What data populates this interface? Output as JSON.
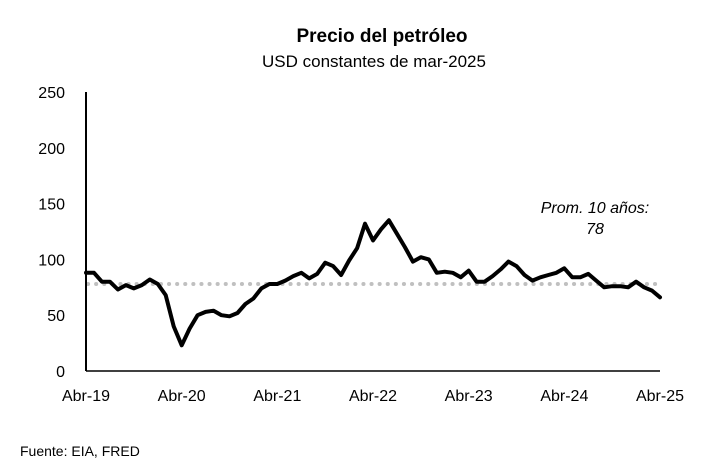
{
  "chart_data": {
    "type": "line",
    "title": "Precio del petróleo",
    "subtitle": "USD constantes de mar-2025",
    "xlabel": "",
    "ylabel": "",
    "ylim": [
      0,
      250
    ],
    "yticks": [
      0,
      50,
      100,
      150,
      200,
      250
    ],
    "xtick_labels": [
      "Abr-19",
      "Abr-20",
      "Abr-21",
      "Abr-22",
      "Abr-23",
      "Abr-24",
      "Abr-25"
    ],
    "grid": false,
    "series": [
      {
        "name": "",
        "color": "#000000",
        "points": [
          [
            "2019-04",
            88
          ],
          [
            "2019-05",
            88
          ],
          [
            "2019-06",
            80
          ],
          [
            "2019-07",
            80
          ],
          [
            "2019-08",
            73
          ],
          [
            "2019-09",
            77
          ],
          [
            "2019-10",
            74
          ],
          [
            "2019-11",
            77
          ],
          [
            "2019-12",
            82
          ],
          [
            "2020-01",
            78
          ],
          [
            "2020-02",
            68
          ],
          [
            "2020-03",
            40
          ],
          [
            "2020-04",
            23
          ],
          [
            "2020-05",
            38
          ],
          [
            "2020-06",
            50
          ],
          [
            "2020-07",
            53
          ],
          [
            "2020-08",
            54
          ],
          [
            "2020-09",
            50
          ],
          [
            "2020-10",
            49
          ],
          [
            "2020-11",
            52
          ],
          [
            "2020-12",
            60
          ],
          [
            "2021-01",
            65
          ],
          [
            "2021-02",
            74
          ],
          [
            "2021-03",
            78
          ],
          [
            "2021-04",
            78
          ],
          [
            "2021-05",
            81
          ],
          [
            "2021-06",
            85
          ],
          [
            "2021-07",
            88
          ],
          [
            "2021-08",
            83
          ],
          [
            "2021-09",
            87
          ],
          [
            "2021-10",
            97
          ],
          [
            "2021-11",
            94
          ],
          [
            "2021-12",
            86
          ],
          [
            "2022-01",
            99
          ],
          [
            "2022-02",
            110
          ],
          [
            "2022-03",
            132
          ],
          [
            "2022-04",
            117
          ],
          [
            "2022-05",
            127
          ],
          [
            "2022-06",
            135
          ],
          [
            "2022-07",
            123
          ],
          [
            "2022-08",
            111
          ],
          [
            "2022-09",
            98
          ],
          [
            "2022-10",
            102
          ],
          [
            "2022-11",
            100
          ],
          [
            "2022-12",
            88
          ],
          [
            "2023-01",
            89
          ],
          [
            "2023-02",
            88
          ],
          [
            "2023-03",
            84
          ],
          [
            "2023-04",
            90
          ],
          [
            "2023-05",
            80
          ],
          [
            "2023-06",
            80
          ],
          [
            "2023-07",
            85
          ],
          [
            "2023-08",
            91
          ],
          [
            "2023-09",
            98
          ],
          [
            "2023-10",
            94
          ],
          [
            "2023-11",
            86
          ],
          [
            "2023-12",
            81
          ],
          [
            "2024-01",
            84
          ],
          [
            "2024-02",
            86
          ],
          [
            "2024-03",
            88
          ],
          [
            "2024-04",
            92
          ],
          [
            "2024-05",
            84
          ],
          [
            "2024-06",
            84
          ],
          [
            "2024-07",
            87
          ],
          [
            "2024-08",
            81
          ],
          [
            "2024-09",
            75
          ],
          [
            "2024-10",
            76
          ],
          [
            "2024-11",
            76
          ],
          [
            "2024-12",
            75
          ],
          [
            "2025-01",
            80
          ],
          [
            "2025-02",
            75
          ],
          [
            "2025-03",
            72
          ],
          [
            "2025-04",
            66
          ]
        ]
      }
    ],
    "reference_line": {
      "value": 78,
      "style": "dotted",
      "color": "#c0c0c0",
      "label_line1": "Prom. 10 años:",
      "label_line2": "78"
    },
    "source": "Fuente: EIA, FRED"
  }
}
